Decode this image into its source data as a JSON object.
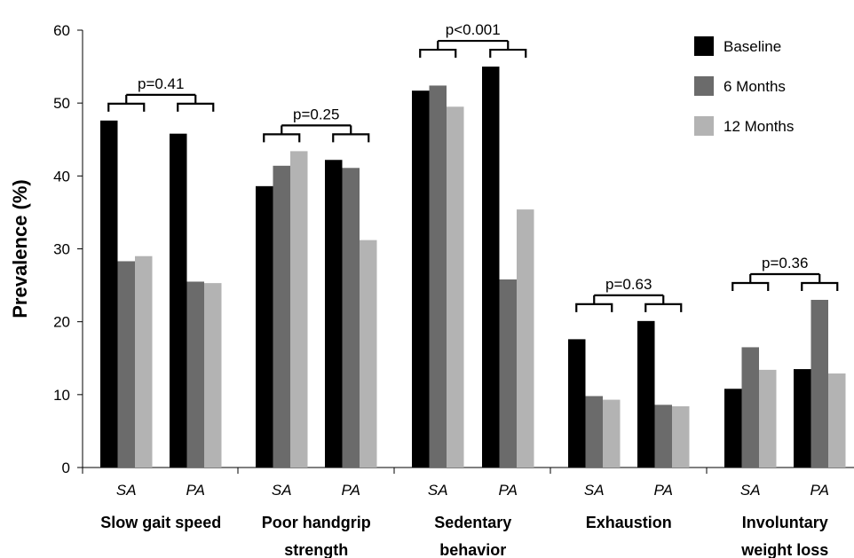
{
  "chart_data": {
    "type": "bar",
    "ylabel": "Prevalence (%)",
    "ylim": [
      0,
      60
    ],
    "yticks": [
      0,
      10,
      20,
      30,
      40,
      50,
      60
    ],
    "grid": false,
    "legend_position": "top-right",
    "series": [
      {
        "name": "Baseline",
        "color": "#000000"
      },
      {
        "name": "6 Months",
        "color": "#6b6b6b"
      },
      {
        "name": "12 Months",
        "color": "#b3b3b3"
      }
    ],
    "groups": [
      {
        "label": [
          "Slow gait speed"
        ],
        "p_value": "p=0.41",
        "bars": [
          {
            "sublabel": "SA",
            "values": [
              47.6,
              28.3,
              29.0
            ]
          },
          {
            "sublabel": "PA",
            "values": [
              45.8,
              25.5,
              25.3
            ]
          }
        ]
      },
      {
        "label": [
          "Poor handgrip",
          "strength"
        ],
        "p_value": "p=0.25",
        "bars": [
          {
            "sublabel": "SA",
            "values": [
              38.6,
              41.4,
              43.4
            ]
          },
          {
            "sublabel": "PA",
            "values": [
              42.2,
              41.1,
              31.2
            ]
          }
        ]
      },
      {
        "label": [
          "Sedentary",
          "behavior"
        ],
        "p_value": "p<0.001",
        "bars": [
          {
            "sublabel": "SA",
            "values": [
              51.7,
              52.4,
              49.5
            ]
          },
          {
            "sublabel": "PA",
            "values": [
              55.0,
              25.8,
              35.4
            ]
          }
        ]
      },
      {
        "label": [
          "Exhaustion"
        ],
        "p_value": "p=0.63",
        "bars": [
          {
            "sublabel": "SA",
            "values": [
              17.6,
              9.8,
              9.3
            ]
          },
          {
            "sublabel": "PA",
            "values": [
              20.1,
              8.6,
              8.4
            ]
          }
        ]
      },
      {
        "label": [
          "Involuntary",
          "weight loss"
        ],
        "p_value": "p=0.36",
        "bars": [
          {
            "sublabel": "SA",
            "values": [
              10.8,
              16.5,
              13.4
            ]
          },
          {
            "sublabel": "PA",
            "values": [
              13.5,
              23.0,
              12.9
            ]
          }
        ]
      }
    ]
  }
}
